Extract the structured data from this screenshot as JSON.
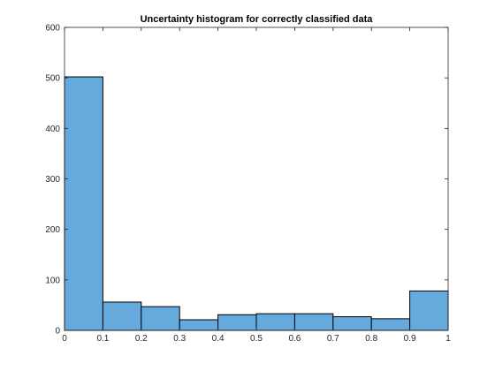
{
  "chart_data": {
    "type": "bar",
    "title": "Uncertainty histogram for correctly classified data",
    "xlabel": "",
    "ylabel": "",
    "bin_edges": [
      0,
      0.1,
      0.2,
      0.3,
      0.4,
      0.5,
      0.6,
      0.7,
      0.8,
      0.9,
      1
    ],
    "values": [
      502,
      56,
      47,
      21,
      31,
      33,
      33,
      27,
      23,
      78
    ],
    "xlim": [
      0,
      1
    ],
    "ylim": [
      0,
      600
    ],
    "xticks": [
      "0",
      "0.1",
      "0.2",
      "0.3",
      "0.4",
      "0.5",
      "0.6",
      "0.7",
      "0.8",
      "0.9",
      "1"
    ],
    "yticks": [
      "0",
      "100",
      "200",
      "300",
      "400",
      "500",
      "600"
    ],
    "grid": false,
    "bar_color": "#66aadd",
    "edge_color": "#000000"
  }
}
